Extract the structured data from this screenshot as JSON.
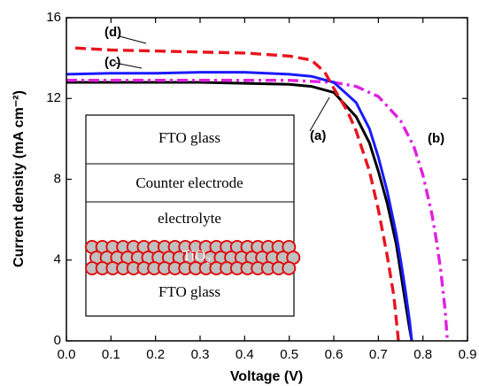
{
  "chart_data": {
    "type": "line",
    "xlabel": "Voltage (V)",
    "ylabel": "Current density (mA cm⁻²)",
    "xlim": [
      0,
      0.9
    ],
    "ylim": [
      0,
      16
    ],
    "xticks": [
      {
        "value": 0,
        "label": "0.0"
      },
      0.1,
      0.2,
      0.3,
      0.4,
      0.5,
      0.6,
      0.7,
      0.8,
      0.9
    ],
    "yticks": [
      0,
      4,
      8,
      12,
      16
    ],
    "series": [
      {
        "name": "(a)",
        "color": "#000000",
        "dash": "solid",
        "x": [
          0,
          0.1,
          0.2,
          0.3,
          0.4,
          0.5,
          0.55,
          0.6,
          0.65,
          0.68,
          0.7,
          0.72,
          0.74,
          0.75,
          0.76,
          0.77,
          0.775
        ],
        "values": [
          12.8,
          12.8,
          12.8,
          12.8,
          12.75,
          12.7,
          12.6,
          12.3,
          11.1,
          9.8,
          8.4,
          6.8,
          4.8,
          3.4,
          2.0,
          0.6,
          0
        ]
      },
      {
        "name": "(b)",
        "color": "#e020e0",
        "dash": "dashdot",
        "x": [
          0,
          0.1,
          0.2,
          0.3,
          0.4,
          0.5,
          0.6,
          0.65,
          0.7,
          0.75,
          0.78,
          0.8,
          0.82,
          0.83,
          0.84,
          0.85,
          0.855
        ],
        "values": [
          12.9,
          12.9,
          12.9,
          12.9,
          12.9,
          12.9,
          12.8,
          12.6,
          12.1,
          10.9,
          9.6,
          8.2,
          6.3,
          5.0,
          3.5,
          1.5,
          0
        ]
      },
      {
        "name": "(c)",
        "color": "#1a1aff",
        "dash": "solid",
        "x": [
          0,
          0.1,
          0.2,
          0.3,
          0.4,
          0.5,
          0.55,
          0.6,
          0.65,
          0.68,
          0.7,
          0.72,
          0.74,
          0.75,
          0.76,
          0.77,
          0.775
        ],
        "values": [
          13.2,
          13.25,
          13.25,
          13.3,
          13.3,
          13.2,
          13.1,
          12.8,
          11.8,
          10.5,
          9.1,
          7.4,
          5.3,
          4.0,
          2.6,
          1.0,
          0
        ]
      },
      {
        "name": "(d)",
        "color": "#e8141e",
        "dash": "dashed",
        "x": [
          0.02,
          0.1,
          0.2,
          0.3,
          0.4,
          0.5,
          0.55,
          0.58,
          0.6,
          0.63,
          0.65,
          0.68,
          0.7,
          0.72,
          0.735,
          0.745
        ],
        "values": [
          14.5,
          14.4,
          14.35,
          14.3,
          14.25,
          14.1,
          13.9,
          13.3,
          12.5,
          11.4,
          10.4,
          8.4,
          6.5,
          4.2,
          2.2,
          0
        ]
      }
    ]
  },
  "inset": {
    "layers": [
      "FTO glass",
      "Counter electrode",
      "electrolyte",
      "TiO₂",
      "FTO glass"
    ]
  }
}
